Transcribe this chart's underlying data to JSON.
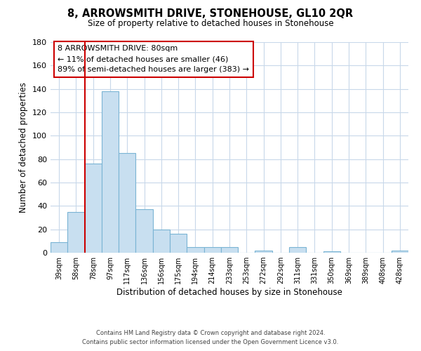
{
  "title": "8, ARROWSMITH DRIVE, STONEHOUSE, GL10 2QR",
  "subtitle": "Size of property relative to detached houses in Stonehouse",
  "xlabel": "Distribution of detached houses by size in Stonehouse",
  "ylabel": "Number of detached properties",
  "bar_labels": [
    "39sqm",
    "58sqm",
    "78sqm",
    "97sqm",
    "117sqm",
    "136sqm",
    "156sqm",
    "175sqm",
    "194sqm",
    "214sqm",
    "233sqm",
    "253sqm",
    "272sqm",
    "292sqm",
    "311sqm",
    "331sqm",
    "350sqm",
    "369sqm",
    "389sqm",
    "408sqm",
    "428sqm"
  ],
  "bar_values": [
    9,
    35,
    76,
    138,
    85,
    37,
    20,
    16,
    5,
    5,
    5,
    0,
    2,
    0,
    5,
    0,
    1,
    0,
    0,
    0,
    2
  ],
  "bar_color": "#c8dff0",
  "bar_edge_color": "#7ab4d4",
  "vline_x_index": 2,
  "vline_color": "#cc0000",
  "ylim": [
    0,
    180
  ],
  "yticks": [
    0,
    20,
    40,
    60,
    80,
    100,
    120,
    140,
    160,
    180
  ],
  "annotation_text": "8 ARROWSMITH DRIVE: 80sqm\n← 11% of detached houses are smaller (46)\n89% of semi-detached houses are larger (383) →",
  "annotation_box_color": "#ffffff",
  "annotation_box_edge": "#cc0000",
  "footer_line1": "Contains HM Land Registry data © Crown copyright and database right 2024.",
  "footer_line2": "Contains public sector information licensed under the Open Government Licence v3.0.",
  "bg_color": "#ffffff",
  "grid_color": "#c8d8ea"
}
